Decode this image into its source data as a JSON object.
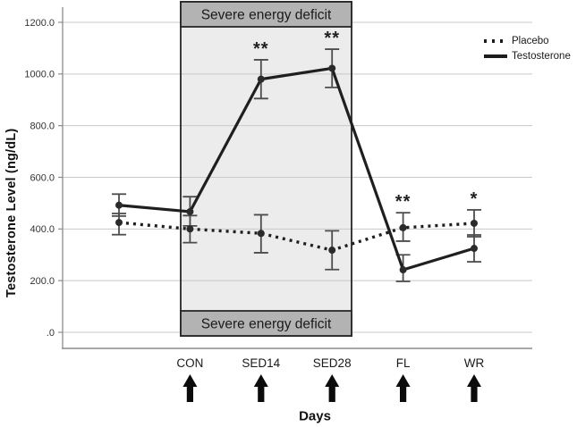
{
  "chart_data": {
    "type": "line",
    "title": "",
    "x_axis_label": "Days",
    "y_axis_label": "Testosterone Level (ng/dL)",
    "categories": [
      "",
      "CON",
      "SED14",
      "SED28",
      "FL",
      "WR"
    ],
    "ylim": [
      0,
      1280
    ],
    "grid": true,
    "legend_position": "top-right",
    "y_ticks": [
      {
        "label": ".0",
        "value": 0
      },
      {
        "label": "200.0",
        "value": 200
      },
      {
        "label": "400.0",
        "value": 400
      },
      {
        "label": "600.0",
        "value": 600
      },
      {
        "label": "800.0",
        "value": 800
      },
      {
        "label": "1000.0",
        "value": 1000
      },
      {
        "label": "1200.0",
        "value": 1200
      }
    ],
    "series": [
      {
        "name": "Placebo",
        "style": "dotted",
        "values": [
          425,
          400,
          383,
          318,
          405,
          422
        ],
        "err_lo": [
          378,
          347,
          308,
          243,
          353,
          370
        ],
        "err_hi": [
          460,
          452,
          455,
          393,
          463,
          474
        ]
      },
      {
        "name": "Testosterone",
        "style": "solid",
        "values": [
          492,
          467,
          980,
          1022,
          242,
          325
        ],
        "err_lo": [
          450,
          412,
          905,
          948,
          197,
          273
        ],
        "err_hi": [
          535,
          525,
          1055,
          1096,
          300,
          377
        ]
      }
    ],
    "annotations": [
      {
        "category": "SED14",
        "text": "**"
      },
      {
        "category": "SED28",
        "text": "**"
      },
      {
        "category": "FL",
        "text": "**"
      },
      {
        "category": "WR",
        "text": "*"
      }
    ],
    "shaded_region": {
      "label": "Severe energy deficit",
      "categories": [
        "CON",
        "SED14",
        "SED28"
      ]
    },
    "arrow_categories": [
      "CON",
      "SED14",
      "SED28",
      "FL",
      "WR"
    ]
  },
  "colors": {
    "line": "#1f1f1f",
    "marker": "#2b2b2b",
    "error_bar": "#4d4d4d",
    "gridline": "#c9c9c9",
    "axis": "#8c8c8c",
    "region_fill": "#ececec",
    "banner_fill": "#b3b3b3",
    "banner_border": "#262626",
    "text": "#1a1a1a",
    "arrow": "#0b0b0b"
  }
}
